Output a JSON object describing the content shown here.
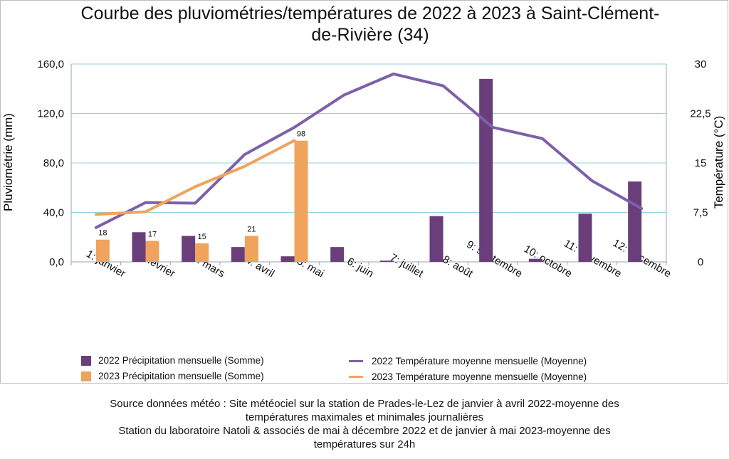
{
  "chart_data": {
    "type": "bar",
    "title_lines": [
      "Courbe des pluviométries/températures de 2022 à 2023 à Saint-Clément-",
      "de-Rivière (34)"
    ],
    "categories": [
      "1: janvier",
      "2: février",
      "3: mars",
      "4: avril",
      "5: mai",
      "6: juin",
      "7: juillet",
      "8: août",
      "9: septembre",
      "10: octobre",
      "11: novembre",
      "12: décembre"
    ],
    "y_left": {
      "label": "Pluviométrie (mm)",
      "ticks": [
        "0,0",
        "40,0",
        "80,0",
        "120,0",
        "160,0"
      ],
      "tick_values": [
        0,
        40,
        80,
        120,
        160
      ],
      "range": [
        0,
        160
      ]
    },
    "y_right": {
      "label": "Température (°C)",
      "ticks": [
        "0",
        "7,5",
        "15",
        "22,5",
        "30"
      ],
      "tick_values": [
        0,
        7.5,
        15,
        22.5,
        30
      ],
      "range": [
        0,
        30
      ]
    },
    "grid": true,
    "series": [
      {
        "name": "2022 Précipitation mensuelle (Somme)",
        "type": "bar",
        "axis": "left",
        "color": "#6a3d7b",
        "values": [
          null,
          24,
          21,
          12,
          4.5,
          12,
          1,
          37,
          148,
          2.5,
          39,
          65
        ],
        "labels": []
      },
      {
        "name": "2023 Précipitation mensuelle (Somme)",
        "type": "bar",
        "axis": "left",
        "color": "#f0a35c",
        "values": [
          18,
          17,
          15,
          21,
          98,
          null,
          null,
          null,
          null,
          null,
          null,
          null
        ],
        "labels": [
          "18",
          "17",
          "15",
          "21",
          "98"
        ]
      },
      {
        "name": "2022 Température moyenne mensuelle (Moyenne)",
        "type": "line",
        "axis": "right",
        "color": "#7d60a8",
        "values": [
          5.2,
          9,
          8.9,
          16.3,
          20.4,
          25.3,
          28.5,
          26.7,
          20.4,
          18.7,
          12.3,
          8.1
        ]
      },
      {
        "name": "2023 Température moyenne mensuelle (Moyenne)",
        "type": "line",
        "axis": "right",
        "color": "#f0a35c",
        "values": [
          7.2,
          7.6,
          11.4,
          14.5,
          18.4,
          null,
          null,
          null,
          null,
          null,
          null,
          null
        ]
      }
    ],
    "legend_position": "bottom"
  },
  "source": {
    "lines": [
      "Source données météo : Site météociel sur la station de Prades-le-Lez de janvier à avril 2022-moyenne des",
      "températures maximales et minimales journalières",
      "Station du laboratoire Natoli & associés  de mai à décembre 2022 et de janvier à mai 2023-moyenne des",
      "températures sur 24h"
    ]
  }
}
